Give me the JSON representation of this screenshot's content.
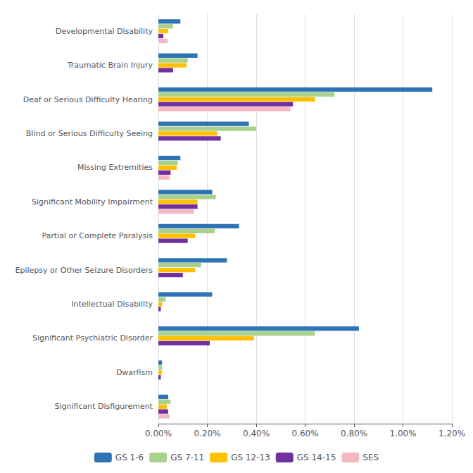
{
  "chart_data": {
    "type": "bar",
    "orientation": "horizontal",
    "categories": [
      "Significant Disfigurement",
      "Dwarfism",
      "Significant Psychiatric Disorder",
      "Intellectual Disability",
      "Epilepsy or Other Seizure Disorders",
      "Partial or Complete Paralysis",
      "Significant Mobility Impairment",
      "Missing Extremities",
      "Blind or Serious Difficulty Seeing",
      "Deaf or Serious Difficulty Hearing",
      "Traumatic Brain Injury",
      "Developmental Disability"
    ],
    "series": [
      {
        "name": "GS 1-6",
        "color": "#2e74b5",
        "values": [
          0.04,
          0.015,
          0.82,
          0.22,
          0.28,
          0.33,
          0.22,
          0.09,
          0.37,
          1.12,
          0.16,
          0.09
        ]
      },
      {
        "name": "GS 7-11",
        "color": "#a9d18e",
        "values": [
          0.05,
          0.015,
          0.64,
          0.03,
          0.175,
          0.23,
          0.235,
          0.08,
          0.4,
          0.72,
          0.12,
          0.06
        ]
      },
      {
        "name": "GS 12-13",
        "color": "#ffc000",
        "values": [
          0.035,
          0.015,
          0.39,
          0.015,
          0.15,
          0.15,
          0.16,
          0.075,
          0.24,
          0.64,
          0.115,
          0.04
        ]
      },
      {
        "name": "GS 14-15",
        "color": "#7030a0",
        "values": [
          0.04,
          0.01,
          0.21,
          0.01,
          0.1,
          0.12,
          0.16,
          0.05,
          0.255,
          0.55,
          0.06,
          0.02
        ]
      },
      {
        "name": "SES",
        "color": "#f4b8c1",
        "values": [
          0.045,
          0.0,
          0.0,
          0.0,
          0.0,
          0.0,
          0.145,
          0.045,
          0.0,
          0.54,
          0.0,
          0.038
        ]
      }
    ],
    "xlim": [
      0,
      1.2
    ],
    "xticks": [
      {
        "value": 0,
        "label": "0.00%"
      },
      {
        "value": 0.2,
        "label": "0.20%"
      },
      {
        "value": 0.4,
        "label": "0.40%"
      },
      {
        "value": 0.6,
        "label": "0.60%"
      },
      {
        "value": 0.8,
        "label": "0.80%"
      },
      {
        "value": 1.0,
        "label": "1.00%"
      },
      {
        "value": 1.2,
        "label": "1.20%"
      }
    ],
    "grid": true,
    "legend": "bottom"
  }
}
